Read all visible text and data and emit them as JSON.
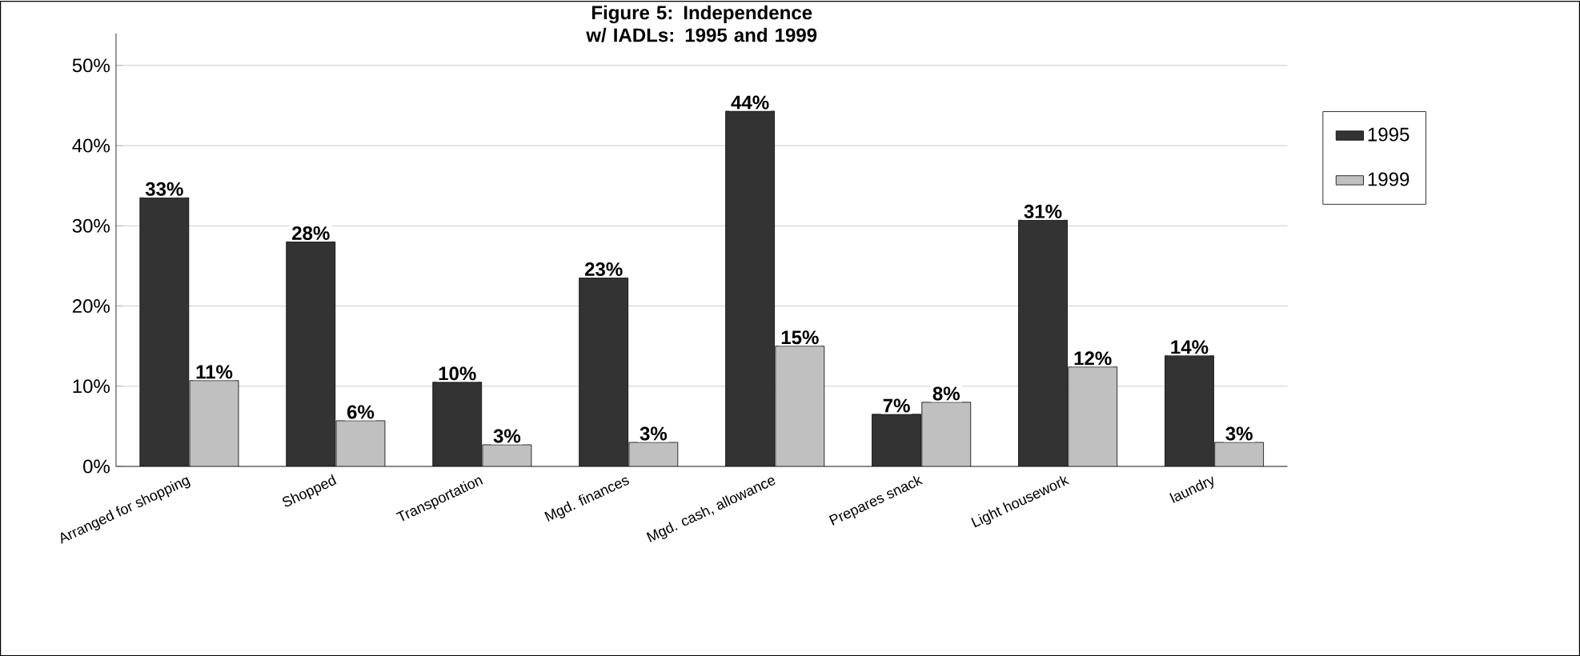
{
  "chart_data": {
    "type": "bar",
    "title": "Figure 5: Independence w/ IADLs: 1995 and 1999",
    "categories": [
      "Arranged for shopping",
      "Shopped",
      "Transportation",
      "Mgd. finances",
      "Mgd. cash, allowance",
      "Prepares snack",
      "Light housework",
      "laundry"
    ],
    "series": [
      {
        "name": "1995",
        "color": "#333333",
        "values": [
          33.5,
          28,
          10.5,
          23.5,
          44.3,
          6.5,
          30.7,
          13.8
        ],
        "value_labels": [
          "33%",
          "28%",
          "10%",
          "23%",
          "44%",
          "7%",
          "31%",
          "14%"
        ]
      },
      {
        "name": "1999",
        "color": "#c0c0c0",
        "values": [
          10.7,
          5.7,
          2.7,
          3,
          15,
          8,
          12.4,
          3
        ],
        "value_labels": [
          "11%",
          "6%",
          "3%",
          "3%",
          "15%",
          "8%",
          "12%",
          "3%"
        ]
      }
    ],
    "ylim": [
      0,
      54
    ],
    "yticks": [
      {
        "value": 0,
        "label": "0%"
      },
      {
        "value": 10,
        "label": "10%"
      },
      {
        "value": 20,
        "label": "20%"
      },
      {
        "value": 30,
        "label": "30%"
      },
      {
        "value": 40,
        "label": "40%"
      },
      {
        "value": 50,
        "label": "50%"
      }
    ],
    "grid": "y",
    "legend": "right"
  }
}
